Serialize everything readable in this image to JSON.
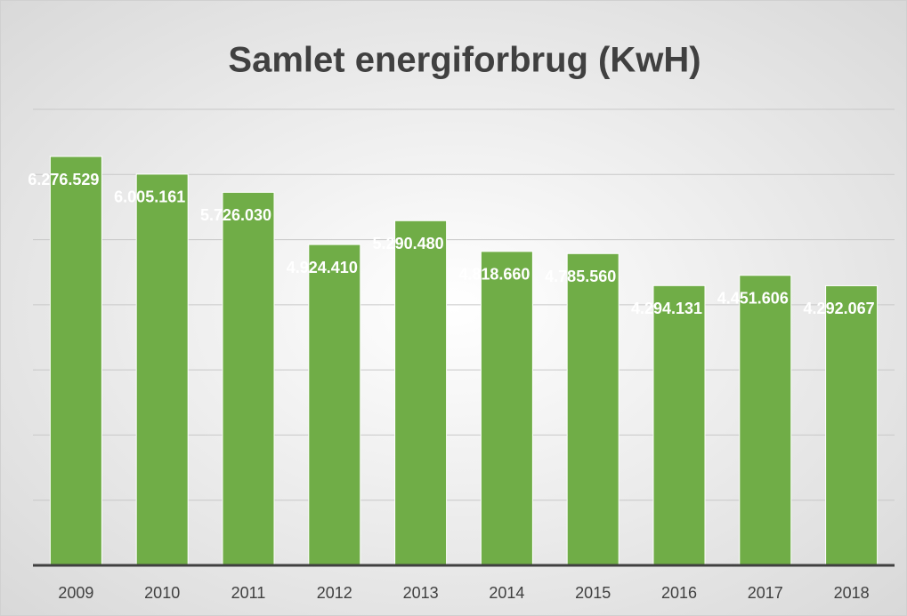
{
  "chart_data": {
    "type": "bar",
    "title": "Samlet energiforbrug (KwH)",
    "categories": [
      "2009",
      "2010",
      "2011",
      "2012",
      "2013",
      "2014",
      "2015",
      "2016",
      "2017",
      "2018"
    ],
    "values": [
      6276529,
      6005161,
      5726030,
      4924410,
      5290480,
      4818660,
      4785560,
      4294131,
      4451606,
      4292067
    ],
    "value_labels": [
      "6.276.529",
      "6.005.161",
      "5.726.030",
      "4.924.410",
      "5.290.480",
      "4.818.660",
      "4.785.560",
      "4.294.131",
      "4.451.606",
      "4.292.067"
    ],
    "color": "#70ad47",
    "ylim": [
      0,
      7000000
    ],
    "yticks": [
      0,
      1000000,
      2000000,
      3000000,
      4000000,
      5000000,
      6000000,
      7000000
    ],
    "grid": true
  }
}
